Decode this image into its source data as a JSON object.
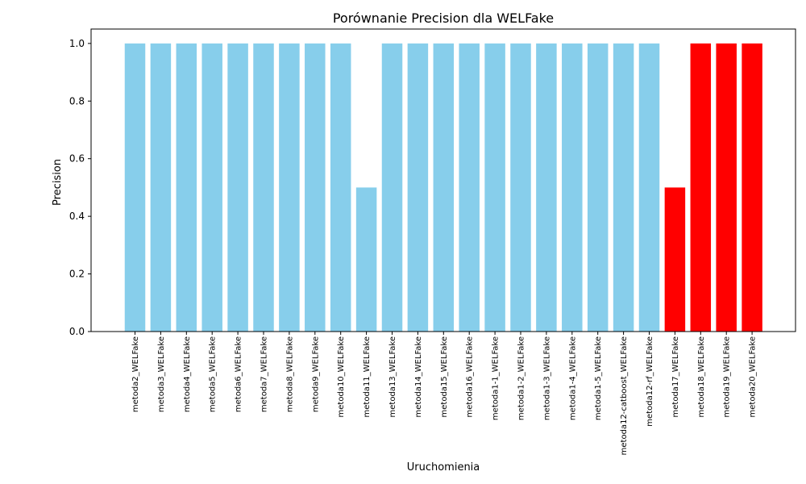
{
  "chart_data": {
    "type": "bar",
    "title": "Porównanie Precision dla WELFake",
    "xlabel": "Uruchomienia",
    "ylabel": "Precision",
    "ylim": [
      0,
      1.05
    ],
    "yticks": [
      0.0,
      0.2,
      0.4,
      0.6,
      0.8,
      1.0
    ],
    "ytick_labels": [
      "0.0",
      "0.2",
      "0.4",
      "0.6",
      "0.8",
      "1.0"
    ],
    "grid": false,
    "legend": "none",
    "categories": [
      "metoda2_WELFake",
      "metoda3_WELFake",
      "metoda4_WELFake",
      "metoda5_WELFake",
      "metoda6_WELFake",
      "metoda7_WELFake",
      "metoda8_WELFake",
      "metoda9_WELFake",
      "metoda10_WELFake",
      "metoda11_WELFake",
      "metoda13_WELFake",
      "metoda14_WELFake",
      "metoda15_WELFake",
      "metoda16_WELFake",
      "metoda1-1_WELFake",
      "metoda1-2_WELFake",
      "metoda1-3_WELFake",
      "metoda1-4_WELFake",
      "metoda1-5_WELFake",
      "metoda12-catboost_WELFake",
      "metoda12-rf_WELFake",
      "metoda17_WELFake",
      "metoda18_WELFake",
      "metoda19_WELFake",
      "metoda20_WELFake"
    ],
    "values": [
      1.0,
      1.0,
      1.0,
      1.0,
      1.0,
      1.0,
      1.0,
      1.0,
      1.0,
      0.5,
      1.0,
      1.0,
      1.0,
      1.0,
      1.0,
      1.0,
      1.0,
      1.0,
      1.0,
      1.0,
      1.0,
      0.5,
      1.0,
      1.0,
      1.0
    ],
    "bar_colors": [
      "#87CEEB",
      "#87CEEB",
      "#87CEEB",
      "#87CEEB",
      "#87CEEB",
      "#87CEEB",
      "#87CEEB",
      "#87CEEB",
      "#87CEEB",
      "#87CEEB",
      "#87CEEB",
      "#87CEEB",
      "#87CEEB",
      "#87CEEB",
      "#87CEEB",
      "#87CEEB",
      "#87CEEB",
      "#87CEEB",
      "#87CEEB",
      "#87CEEB",
      "#87CEEB",
      "#FF0000",
      "#FF0000",
      "#FF0000",
      "#FF0000"
    ]
  }
}
